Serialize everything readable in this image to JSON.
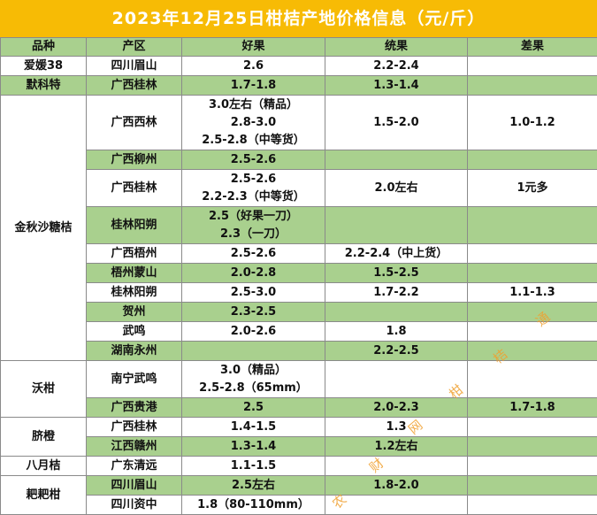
{
  "title": "2023年12月25日柑桔产地价格信息（元/斤）",
  "header": [
    "品种",
    "产区",
    "好果",
    "统果",
    "差果"
  ],
  "groups": [
    {
      "variety": "爱媛38",
      "rows": [
        {
          "region": "四川眉山",
          "good": [
            "2.6"
          ],
          "standard": [
            "2.2-2.4"
          ]
        }
      ]
    },
    {
      "variety": "默科特",
      "rows": [
        {
          "region": "广西桂林",
          "good": [
            "1.7-1.8"
          ],
          "standard": [
            "1.3-1.4"
          ]
        }
      ]
    },
    {
      "variety": "金秋沙糖桔",
      "rows": [
        {
          "region": "广西西林",
          "good": [
            "3.0左右（精品）",
            "2.8-3.0",
            "2.5-2.8（中等货）"
          ],
          "standard": [
            "1.5-2.0"
          ],
          "poor": [
            "1.0-1.2"
          ]
        },
        {
          "region": "广西柳州",
          "good": [
            "2.5-2.6"
          ]
        },
        {
          "region": "广西桂林",
          "good": [
            "2.5-2.6",
            "2.2-2.3（中等货）"
          ],
          "standard": [
            "2.0左右"
          ],
          "poor": [
            "1元多"
          ]
        },
        {
          "region": "桂林阳朔",
          "good": [
            "2.5（好果一刀）",
            "2.3（一刀）"
          ]
        },
        {
          "region": "广西梧州",
          "good": [
            "2.5-2.6"
          ],
          "standard": [
            "2.2-2.4（中上货）"
          ]
        },
        {
          "region": "梧州蒙山",
          "good": [
            "2.0-2.8"
          ],
          "standard": [
            "1.5-2.5"
          ]
        },
        {
          "region": "桂林阳朔",
          "good": [
            "2.5-3.0"
          ],
          "standard": [
            "1.7-2.2"
          ],
          "poor": [
            "1.1-1.3"
          ]
        },
        {
          "region": "贺州",
          "good": [
            "2.3-2.5"
          ]
        },
        {
          "region": "武鸣",
          "good": [
            "2.0-2.6"
          ],
          "standard": [
            "1.8"
          ]
        },
        {
          "region": "湖南永州",
          "standard": [
            "2.2-2.5"
          ]
        }
      ]
    },
    {
      "variety": "沃柑",
      "rows": [
        {
          "region": "南宁武鸣",
          "good": [
            "3.0（精品）",
            "2.5-2.8（65mm）"
          ]
        },
        {
          "region": "广西贵港",
          "good": [
            "2.5"
          ],
          "standard": [
            "2.0-2.3"
          ],
          "poor": [
            "1.7-1.8"
          ]
        }
      ]
    },
    {
      "variety": "脐橙",
      "rows": [
        {
          "region": "广西桂林",
          "good": [
            "1.4-1.5"
          ],
          "standard": [
            "1.3"
          ]
        },
        {
          "region": "江西赣州",
          "good": [
            "1.3-1.4"
          ],
          "standard": [
            "1.2左右"
          ]
        }
      ]
    },
    {
      "variety": "八月桔",
      "rows": [
        {
          "region": "广东清远",
          "good": [
            "1.1-1.5"
          ]
        }
      ]
    },
    {
      "variety": "耙耙柑",
      "rows": [
        {
          "region": "四川眉山",
          "good": [
            "2.5左右"
          ],
          "standard": [
            "1.8-2.0"
          ]
        },
        {
          "region": "四川资中",
          "good": [
            "1.8（80-110mm）"
          ]
        }
      ]
    }
  ],
  "watermark": [
    "农",
    "财",
    "网",
    "柑",
    "桔",
    "通"
  ]
}
